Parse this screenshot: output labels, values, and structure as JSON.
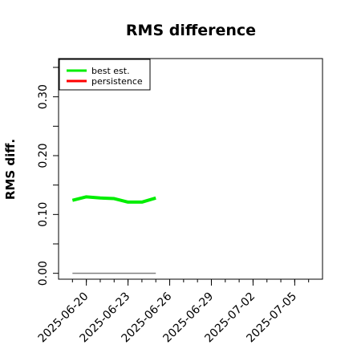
{
  "chart_data": {
    "type": "line",
    "title": "RMS difference",
    "xlabel": "",
    "ylabel": "RMS diff.",
    "x_ticks": [
      "2025-06-20",
      "2025-06-23",
      "2025-06-26",
      "2025-06-29",
      "2025-07-02",
      "2025-07-05"
    ],
    "y_ticks": [
      "0.00",
      "0.10",
      "0.20",
      "0.30"
    ],
    "ylim": [
      -0.01,
      0.365
    ],
    "xlim": [
      "2025-06-18",
      "2025-07-07"
    ],
    "grid": false,
    "legend_position": "top-left",
    "series": [
      {
        "name": "best est.",
        "color": "#00ee00",
        "x": [
          "2025-06-19",
          "2025-06-20",
          "2025-06-21",
          "2025-06-22",
          "2025-06-23",
          "2025-06-24",
          "2025-06-25"
        ],
        "values": [
          0.124,
          0.13,
          0.128,
          0.127,
          0.121,
          0.121,
          0.128
        ]
      },
      {
        "name": "persistence",
        "color": "#ff0000",
        "x": [],
        "values": []
      }
    ],
    "reference_line": {
      "color": "#808080",
      "x": [
        "2025-06-19",
        "2025-06-25"
      ],
      "values": [
        0.0,
        0.0
      ]
    }
  }
}
